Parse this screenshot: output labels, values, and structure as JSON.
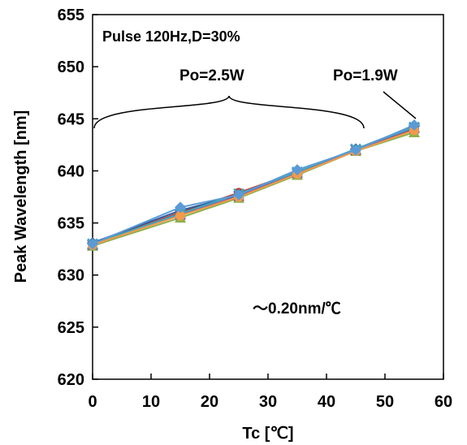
{
  "chart_data": {
    "type": "line",
    "xlabel": "Tc [℃]",
    "ylabel": "Peak Wavelength [nm]",
    "xlim": [
      0,
      60
    ],
    "ylim": [
      620,
      655
    ],
    "xticks": [
      0,
      10,
      20,
      30,
      40,
      50,
      60
    ],
    "yticks": [
      620,
      625,
      630,
      635,
      640,
      645,
      650,
      655
    ],
    "grid": false,
    "legend": "none",
    "x": [
      0,
      15,
      25,
      35,
      45,
      55
    ],
    "series": [
      {
        "color": "#C0392B",
        "marker": "circle",
        "values": [
          633.0,
          636.0,
          637.9,
          639.9,
          642.0,
          644.0
        ]
      },
      {
        "color": "#2E5C9E",
        "marker": "diamond",
        "values": [
          633.1,
          636.2,
          637.7,
          639.7,
          642.1,
          644.3
        ]
      },
      {
        "color": "#8DB04D",
        "marker": "triangle",
        "values": [
          632.8,
          635.5,
          637.4,
          639.6,
          641.9,
          643.7
        ]
      },
      {
        "color": "#7E5FA0",
        "marker": "cross",
        "values": [
          632.9,
          635.8,
          637.6,
          639.8,
          642.0,
          644.1
        ]
      },
      {
        "color": "#3FA7C0",
        "marker": "cross",
        "values": [
          633.0,
          635.9,
          637.8,
          639.9,
          642.1,
          644.2
        ]
      },
      {
        "color": "#F29A4A",
        "marker": "circle",
        "values": [
          632.9,
          635.7,
          637.5,
          639.7,
          641.9,
          643.9
        ]
      },
      {
        "color": "#5B9BD5",
        "marker": "diamond",
        "values": [
          633.0,
          636.5,
          637.7,
          640.1,
          642.0,
          644.4
        ]
      }
    ],
    "annotations": {
      "condition": "Pulse 120Hz,D=30%",
      "po_a": "Po=2.5W",
      "po_b": "Po=1.9W",
      "slope": "～0.20nm/℃"
    }
  }
}
